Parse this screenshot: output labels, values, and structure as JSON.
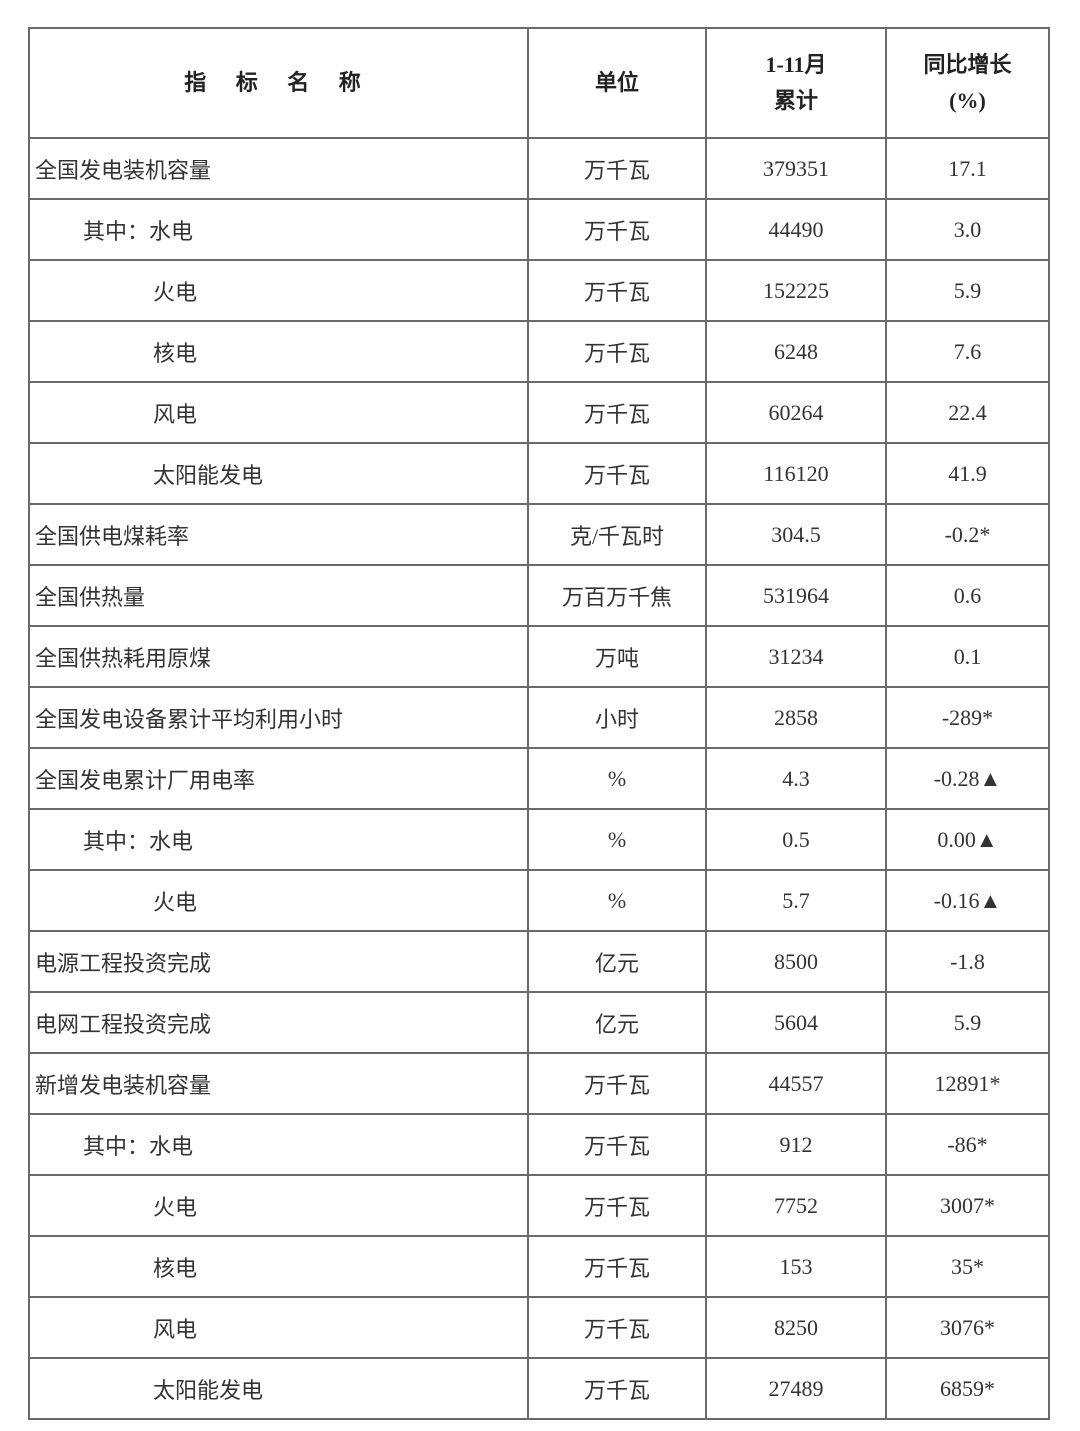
{
  "table": {
    "headers": {
      "name": "指 标 名 称",
      "unit": "单位",
      "cumulative_line1": "1-11月",
      "cumulative_line2": "累计",
      "growth_line1": "同比增长",
      "growth_line2": "(%)"
    },
    "rows": [
      {
        "name": "全国发电装机容量",
        "indent": 0,
        "unit": "万千瓦",
        "value": "379351",
        "growth": "17.1"
      },
      {
        "name": "其中：水电",
        "indent": 1,
        "unit": "万千瓦",
        "value": "44490",
        "growth": "3.0"
      },
      {
        "name": "火电",
        "indent": 2,
        "unit": "万千瓦",
        "value": "152225",
        "growth": "5.9"
      },
      {
        "name": "核电",
        "indent": 2,
        "unit": "万千瓦",
        "value": "6248",
        "growth": "7.6"
      },
      {
        "name": "风电",
        "indent": 2,
        "unit": "万千瓦",
        "value": "60264",
        "growth": "22.4"
      },
      {
        "name": "太阳能发电",
        "indent": 2,
        "unit": "万千瓦",
        "value": "116120",
        "growth": "41.9"
      },
      {
        "name": "全国供电煤耗率",
        "indent": 0,
        "unit": "克/千瓦时",
        "value": "304.5",
        "growth": "-0.2*"
      },
      {
        "name": "全国供热量",
        "indent": 0,
        "unit": "万百万千焦",
        "value": "531964",
        "growth": "0.6"
      },
      {
        "name": "全国供热耗用原煤",
        "indent": 0,
        "unit": "万吨",
        "value": "31234",
        "growth": "0.1"
      },
      {
        "name": "全国发电设备累计平均利用小时",
        "indent": 0,
        "unit": "小时",
        "value": "2858",
        "growth": "-289*"
      },
      {
        "name": "全国发电累计厂用电率",
        "indent": 0,
        "unit": "%",
        "value": "4.3",
        "growth": "-0.28▲"
      },
      {
        "name": "其中：水电",
        "indent": 1,
        "unit": "%",
        "value": "0.5",
        "growth": "0.00▲"
      },
      {
        "name": "火电",
        "indent": 2,
        "unit": "%",
        "value": "5.7",
        "growth": "-0.16▲"
      },
      {
        "name": "电源工程投资完成",
        "indent": 0,
        "unit": "亿元",
        "value": "8500",
        "growth": "-1.8"
      },
      {
        "name": "电网工程投资完成",
        "indent": 0,
        "unit": "亿元",
        "value": "5604",
        "growth": "5.9"
      },
      {
        "name": "新增发电装机容量",
        "indent": 0,
        "unit": "万千瓦",
        "value": "44557",
        "growth": "12891*"
      },
      {
        "name": "其中：水电",
        "indent": 1,
        "unit": "万千瓦",
        "value": "912",
        "growth": "-86*"
      },
      {
        "name": "火电",
        "indent": 2,
        "unit": "万千瓦",
        "value": "7752",
        "growth": "3007*"
      },
      {
        "name": "核电",
        "indent": 2,
        "unit": "万千瓦",
        "value": "153",
        "growth": "35*"
      },
      {
        "name": "风电",
        "indent": 2,
        "unit": "万千瓦",
        "value": "8250",
        "growth": "3076*"
      },
      {
        "name": "太阳能发电",
        "indent": 2,
        "unit": "万千瓦",
        "value": "27489",
        "growth": "6859*"
      }
    ]
  }
}
